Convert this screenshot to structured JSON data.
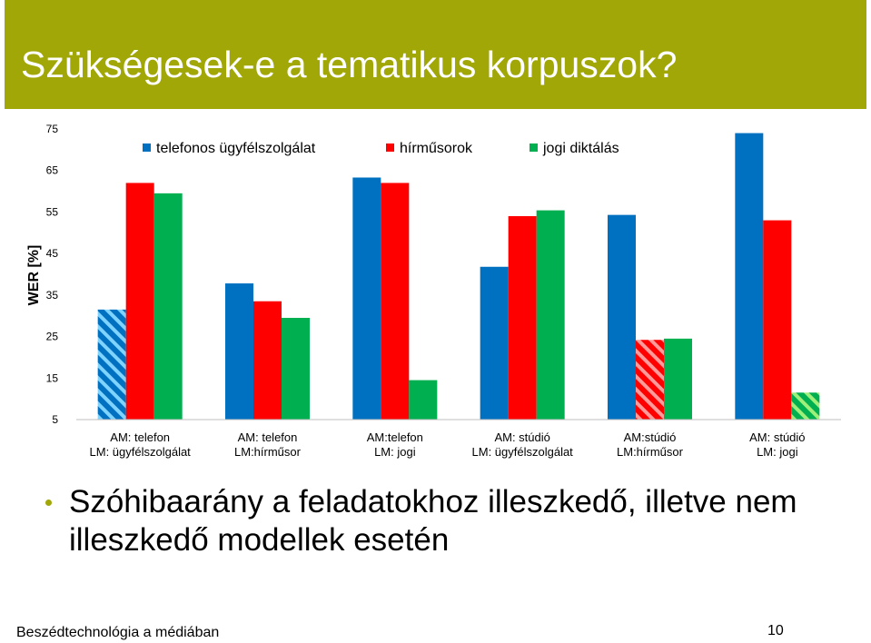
{
  "slide": {
    "title": "Szükségesek-e a tematikus korpuszok?",
    "bullet": "Szóhibaarány a feladatokhoz illeszkedő, illetve nem illeszkedő modellek esetén",
    "footer": "Beszédtechnológia a médiában",
    "page_number": "10",
    "accent_color": "#a0a707"
  },
  "chart_data": {
    "type": "bar",
    "ylabel": "WER [%]",
    "xlabel": "",
    "ylim": [
      5,
      75
    ],
    "yticks": [
      5,
      15,
      25,
      35,
      45,
      55,
      65,
      75
    ],
    "legend_position": "top",
    "grid": false,
    "categories": [
      [
        "AM: telefon",
        "LM: ügyfélszolgálat"
      ],
      [
        "AM: telefon",
        "LM:hírműsor"
      ],
      [
        "AM:telefon",
        "LM: jogi"
      ],
      [
        "AM: stúdió",
        "LM: ügyfélszolgálat"
      ],
      [
        "AM:stúdió",
        "LM:hírműsor"
      ],
      [
        "AM: stúdió",
        "LM: jogi"
      ]
    ],
    "series": [
      {
        "name": "telefonos ügyfélszolgálat",
        "color": "#0070c0",
        "values": [
          31.5,
          37.8,
          63.3,
          41.8,
          54.3,
          74.0
        ]
      },
      {
        "name": "hírműsorok",
        "color": "#ff0000",
        "values": [
          62.0,
          33.5,
          62.0,
          54.0,
          24.2,
          53.0
        ]
      },
      {
        "name": "jogi diktálás",
        "color": "#00b050",
        "values": [
          59.5,
          29.5,
          14.5,
          55.4,
          24.5,
          11.5
        ]
      }
    ],
    "highlighted_bars": [
      [
        0,
        0
      ],
      [
        4,
        1
      ],
      [
        5,
        2
      ]
    ]
  }
}
